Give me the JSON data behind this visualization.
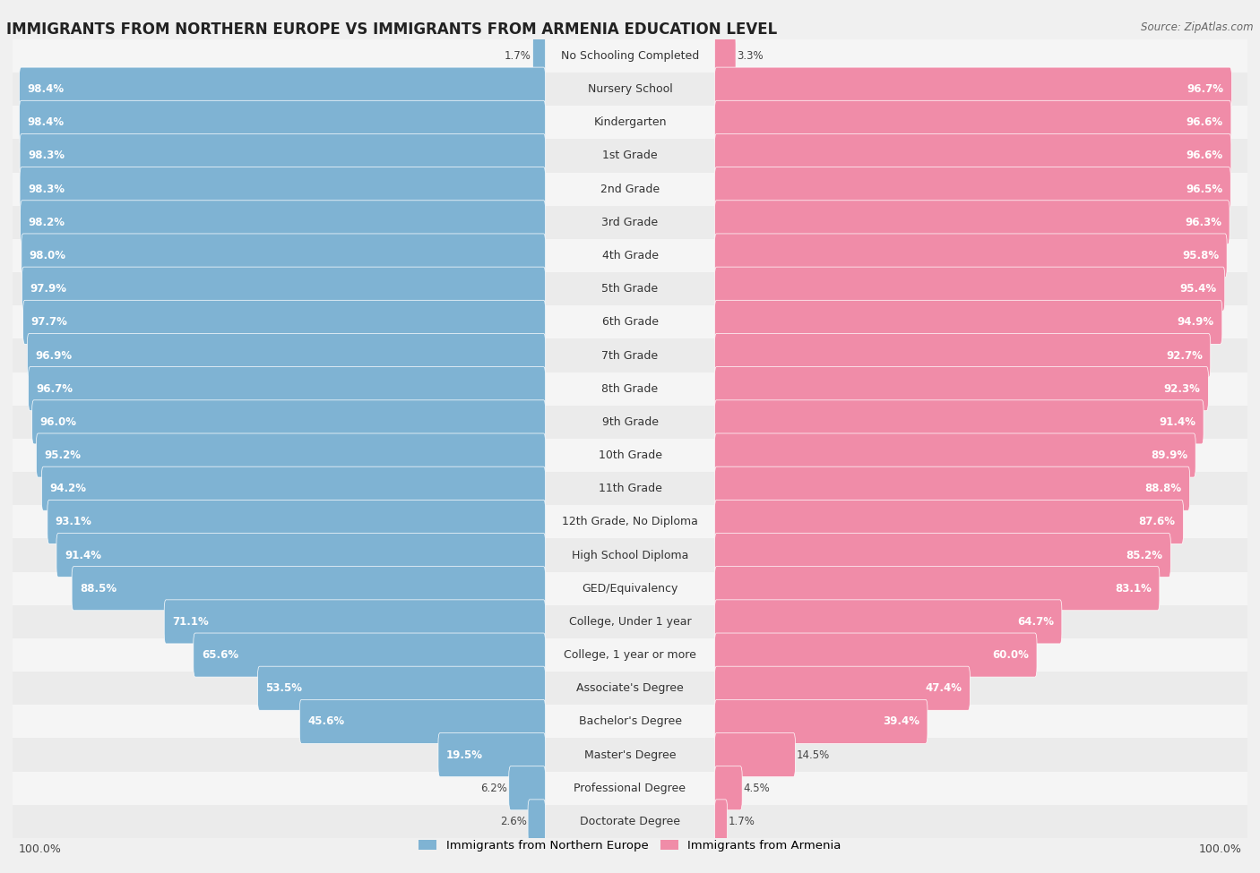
{
  "title": "IMMIGRANTS FROM NORTHERN EUROPE VS IMMIGRANTS FROM ARMENIA EDUCATION LEVEL",
  "source": "Source: ZipAtlas.com",
  "categories": [
    "No Schooling Completed",
    "Nursery School",
    "Kindergarten",
    "1st Grade",
    "2nd Grade",
    "3rd Grade",
    "4th Grade",
    "5th Grade",
    "6th Grade",
    "7th Grade",
    "8th Grade",
    "9th Grade",
    "10th Grade",
    "11th Grade",
    "12th Grade, No Diploma",
    "High School Diploma",
    "GED/Equivalency",
    "College, Under 1 year",
    "College, 1 year or more",
    "Associate's Degree",
    "Bachelor's Degree",
    "Master's Degree",
    "Professional Degree",
    "Doctorate Degree"
  ],
  "northern_europe": [
    1.7,
    98.4,
    98.4,
    98.3,
    98.3,
    98.2,
    98.0,
    97.9,
    97.7,
    96.9,
    96.7,
    96.0,
    95.2,
    94.2,
    93.1,
    91.4,
    88.5,
    71.1,
    65.6,
    53.5,
    45.6,
    19.5,
    6.2,
    2.6
  ],
  "armenia": [
    3.3,
    96.7,
    96.6,
    96.6,
    96.5,
    96.3,
    95.8,
    95.4,
    94.9,
    92.7,
    92.3,
    91.4,
    89.9,
    88.8,
    87.6,
    85.2,
    83.1,
    64.7,
    60.0,
    47.4,
    39.4,
    14.5,
    4.5,
    1.7
  ],
  "blue_color": "#7fb3d3",
  "pink_color": "#f08ca8",
  "bg_row_even": "#f5f5f5",
  "bg_row_odd": "#ebebeb",
  "legend_blue": "Immigrants from Northern Europe",
  "legend_pink": "Immigrants from Armenia",
  "title_fontsize": 12,
  "label_fontsize": 9,
  "value_fontsize": 8.5
}
